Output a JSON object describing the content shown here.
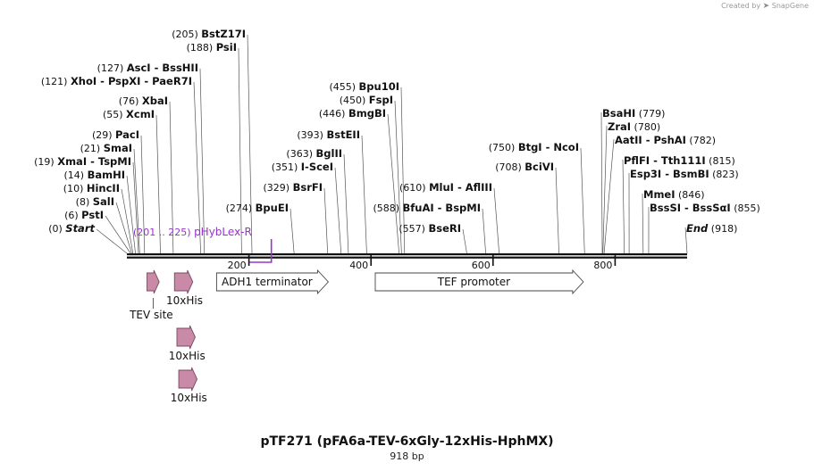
{
  "brand": {
    "prefix": "Created by",
    "name": "SnapGene"
  },
  "sequence": {
    "length": 918
  },
  "title": "pTF271 (pFA6a-TEV-6xGly-12xHis-HphMX)",
  "subtitle": "918 bp",
  "ruler": {
    "ticks": [
      200,
      400,
      600,
      800
    ]
  },
  "ends": {
    "start": "Start",
    "end": "End"
  },
  "sites": [
    {
      "pos": "(0)",
      "name": "Start",
      "bp": 0,
      "side": "L",
      "italic": true
    },
    {
      "pos": "(6)",
      "name": "PstI",
      "bp": 6,
      "side": "L"
    },
    {
      "pos": "(8)",
      "name": "SalI",
      "bp": 8,
      "side": "L"
    },
    {
      "pos": "(10)",
      "name": "HincII",
      "bp": 10,
      "side": "L"
    },
    {
      "pos": "(14)",
      "name": "BamHI",
      "bp": 14,
      "side": "L"
    },
    {
      "pos": "(19)",
      "name": "XmaI  -  TspMI",
      "bp": 19,
      "side": "L"
    },
    {
      "pos": "(21)",
      "name": "SmaI",
      "bp": 21,
      "side": "L"
    },
    {
      "pos": "(29)",
      "name": "PacI",
      "bp": 29,
      "side": "L"
    },
    {
      "pos": "(55)",
      "name": "XcmI",
      "bp": 55,
      "side": "L"
    },
    {
      "pos": "(76)",
      "name": "XbaI",
      "bp": 76,
      "side": "L"
    },
    {
      "pos": "(121)",
      "name": "XhoI  -  PspXI  -  PaeR7I",
      "bp": 121,
      "side": "L"
    },
    {
      "pos": "(127)",
      "name": "AscI  -  BssHII",
      "bp": 127,
      "side": "L"
    },
    {
      "pos": "(188)",
      "name": "PsiI",
      "bp": 188,
      "side": "L"
    },
    {
      "pos": "(205)",
      "name": "BstZ17I",
      "bp": 205,
      "side": "L"
    },
    {
      "pos": "(274)",
      "name": "BpuEI",
      "bp": 274,
      "side": "L"
    },
    {
      "pos": "(329)",
      "name": "BsrFI",
      "bp": 329,
      "side": "L"
    },
    {
      "pos": "(351)",
      "name": "I-SceI",
      "bp": 351,
      "side": "L"
    },
    {
      "pos": "(363)",
      "name": "BglII",
      "bp": 363,
      "side": "L"
    },
    {
      "pos": "(393)",
      "name": "BstEII",
      "bp": 393,
      "side": "L"
    },
    {
      "pos": "(446)",
      "name": "BmgBI",
      "bp": 446,
      "side": "L"
    },
    {
      "pos": "(450)",
      "name": "FspI",
      "bp": 450,
      "side": "L"
    },
    {
      "pos": "(455)",
      "name": "Bpu10I",
      "bp": 455,
      "side": "L"
    },
    {
      "pos": "(557)",
      "name": "BseRI",
      "bp": 557,
      "side": "L"
    },
    {
      "pos": "(588)",
      "name": "BfuAI  -  BspMI",
      "bp": 588,
      "side": "L"
    },
    {
      "pos": "(610)",
      "name": "MluI  -  AflIII",
      "bp": 610,
      "side": "L"
    },
    {
      "pos": "(708)",
      "name": "BciVI",
      "bp": 708,
      "side": "L"
    },
    {
      "pos": "(750)",
      "name": "BtgI  -  NcoI",
      "bp": 750,
      "side": "L"
    },
    {
      "pos": "(779)",
      "name": "BsaHI",
      "bp": 779,
      "side": "R"
    },
    {
      "pos": "(780)",
      "name": "ZraI",
      "bp": 780,
      "side": "R"
    },
    {
      "pos": "(782)",
      "name": "AatII  -  PshAI",
      "bp": 782,
      "side": "R"
    },
    {
      "pos": "(815)",
      "name": "PflFI  -  Tth111I",
      "bp": 815,
      "side": "R"
    },
    {
      "pos": "(823)",
      "name": "Esp3I  -  BsmBI",
      "bp": 823,
      "side": "R"
    },
    {
      "pos": "(846)",
      "name": "MmeI",
      "bp": 846,
      "side": "R"
    },
    {
      "pos": "(855)",
      "name": "BssSI  -  BssSαI",
      "bp": 855,
      "side": "R"
    },
    {
      "pos": "(918)",
      "name": "End",
      "bp": 918,
      "side": "R",
      "italic": true
    }
  ],
  "primer": {
    "range": "(201 .. 225)",
    "name": "pHybLex-R",
    "start": 201,
    "end": 225,
    "color": "#9b30d0"
  },
  "features": [
    {
      "name": "TEV site",
      "start": 33,
      "end": 53,
      "type": "pink",
      "row": 0,
      "label": "below"
    },
    {
      "name": "10xHis",
      "start": 78,
      "end": 108,
      "type": "pink",
      "row": 0,
      "label": "below"
    },
    {
      "name": "ADH1 terminator",
      "start": 147,
      "end": 330,
      "type": "open",
      "row": 0,
      "label": "inside"
    },
    {
      "name": "TEF promoter",
      "start": 407,
      "end": 748,
      "type": "open",
      "row": 0,
      "label": "inside"
    },
    {
      "name": "10xHis",
      "start": 82,
      "end": 112,
      "type": "pink",
      "row": 1,
      "label": "below"
    },
    {
      "name": "10xHis",
      "start": 85,
      "end": 115,
      "type": "pink",
      "row": 2,
      "label": "below"
    }
  ],
  "colors": {
    "feature_fill": "#c88aa6",
    "feature_stroke": "#7a4a60",
    "line": "#555555",
    "text": "#111111"
  }
}
